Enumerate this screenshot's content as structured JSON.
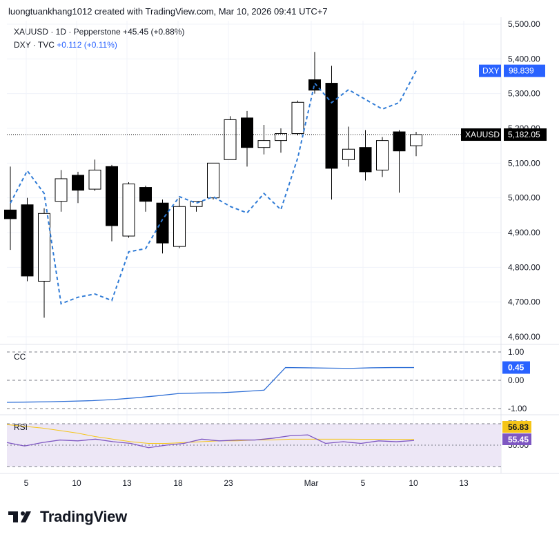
{
  "header": {
    "attribution": "luongtuankhang1012 created with TradingView.com, Mar 10, 2026 09:41 UTC+7"
  },
  "legend": {
    "main_symbol": "XAUUSD · 1D · Pepperstone",
    "main_change": "+45.45 (+0.88%)",
    "overlay_symbol": "DXY · TVC",
    "overlay_change": "+0.112 (+0.11%)"
  },
  "panes": {
    "cc_label": "CC",
    "rsi_label": "RSI"
  },
  "footer": {
    "brand": "TradingView"
  },
  "colors": {
    "bull_fill": "#ffffff",
    "bear_fill": "#000000",
    "dxy_line": "#2f7bd6",
    "cc_line": "#2f6fd6",
    "rsi_line": "#7e57c2",
    "rsi_ma": "#f5c518",
    "rsi_band": "#ede7f6",
    "dxy_badge": "#2962ff",
    "cc_badge": "#2962ff",
    "rsi_badge": "#7e57c2",
    "rsi_ma_badge": "#f5c518"
  },
  "chart_data": [
    {
      "type": "candlestick",
      "title": "XAUUSD · 1D · Pepperstone",
      "x_ticks": [
        "5",
        "10",
        "13",
        "18",
        "23",
        "Mar",
        "5",
        "10",
        "13"
      ],
      "y_ticks": [
        "5,500.00",
        "5,400.00",
        "5,300.00",
        "5,200.00",
        "5,100.00",
        "5,000.00",
        "4,900.00",
        "4,800.00",
        "4,700.00",
        "4,600.00"
      ],
      "ylim": [
        4580,
        5510
      ],
      "candles": [
        {
          "o": 4965,
          "h": 5090,
          "l": 4850,
          "c": 4940
        },
        {
          "o": 4980,
          "h": 5000,
          "l": 4760,
          "c": 4775
        },
        {
          "o": 4760,
          "h": 4970,
          "l": 4655,
          "c": 4955
        },
        {
          "o": 4990,
          "h": 5080,
          "l": 4960,
          "c": 5055
        },
        {
          "o": 5065,
          "h": 5075,
          "l": 4985,
          "c": 5022
        },
        {
          "o": 5025,
          "h": 5110,
          "l": 5020,
          "c": 5080
        },
        {
          "o": 5090,
          "h": 5095,
          "l": 4875,
          "c": 4920
        },
        {
          "o": 4890,
          "h": 5045,
          "l": 4885,
          "c": 5040
        },
        {
          "o": 5030,
          "h": 5035,
          "l": 4960,
          "c": 4990
        },
        {
          "o": 4985,
          "h": 4995,
          "l": 4840,
          "c": 4870
        },
        {
          "o": 4860,
          "h": 5000,
          "l": 4855,
          "c": 4975
        },
        {
          "o": 4975,
          "h": 4990,
          "l": 4960,
          "c": 4990
        },
        {
          "o": 5000,
          "h": 5100,
          "l": 4995,
          "c": 5100
        },
        {
          "o": 5110,
          "h": 5235,
          "l": 5110,
          "c": 5225
        },
        {
          "o": 5230,
          "h": 5250,
          "l": 5090,
          "c": 5145
        },
        {
          "o": 5145,
          "h": 5210,
          "l": 5125,
          "c": 5165
        },
        {
          "o": 5165,
          "h": 5200,
          "l": 5130,
          "c": 5185
        },
        {
          "o": 5185,
          "h": 5280,
          "l": 5180,
          "c": 5275
        },
        {
          "o": 5340,
          "h": 5420,
          "l": 5300,
          "c": 5310
        },
        {
          "o": 5330,
          "h": 5380,
          "l": 4995,
          "c": 5085
        },
        {
          "o": 5110,
          "h": 5205,
          "l": 5090,
          "c": 5140
        },
        {
          "o": 5145,
          "h": 5195,
          "l": 5050,
          "c": 5075
        },
        {
          "o": 5080,
          "h": 5175,
          "l": 5060,
          "c": 5165
        },
        {
          "o": 5190,
          "h": 5195,
          "l": 5015,
          "c": 5135
        },
        {
          "o": 5150,
          "h": 5190,
          "l": 5120,
          "c": 5182.05
        }
      ],
      "last_label": "XAUUSD",
      "last_value": "5,182.05"
    },
    {
      "type": "line",
      "name": "DXY",
      "values": [
        96.8,
        97.3,
        96.95,
        95.25,
        95.35,
        95.4,
        95.3,
        96.05,
        96.1,
        96.55,
        96.9,
        96.8,
        96.9,
        96.75,
        96.65,
        96.95,
        96.7,
        97.5,
        98.65,
        98.35,
        98.55,
        98.4,
        98.25,
        98.35,
        98.84
      ],
      "last_label": "DXY",
      "last_value": "98.839"
    },
    {
      "type": "line",
      "name": "CC",
      "y_ticks": [
        "1.00",
        "0.00",
        "-1.00"
      ],
      "ylim": [
        -1.2,
        1.05
      ],
      "values": [
        -0.78,
        -0.77,
        -0.76,
        -0.74,
        -0.72,
        -0.68,
        -0.62,
        -0.55,
        -0.47,
        -0.45,
        -0.44,
        -0.4,
        -0.35,
        0.45,
        0.44,
        0.43,
        0.42,
        0.44,
        0.45,
        0.45
      ],
      "last_value": "0.45"
    },
    {
      "type": "line",
      "name": "RSI",
      "y_ticks": [
        "75.00",
        "50.00"
      ],
      "values": [
        53,
        49,
        53,
        56,
        55,
        57,
        54,
        52,
        47,
        50,
        52,
        57,
        55,
        56,
        56,
        58,
        61,
        62,
        52,
        54,
        52,
        55,
        54,
        55.45
      ],
      "ma_values": [
        74,
        72,
        70,
        67,
        64,
        60,
        57,
        54,
        52,
        52,
        53,
        54,
        55,
        55,
        56,
        56,
        57,
        57,
        57,
        57,
        56.9,
        56.9,
        56.8,
        56.83
      ],
      "last_value": "55.45",
      "ma_last_value": "56.83"
    }
  ]
}
